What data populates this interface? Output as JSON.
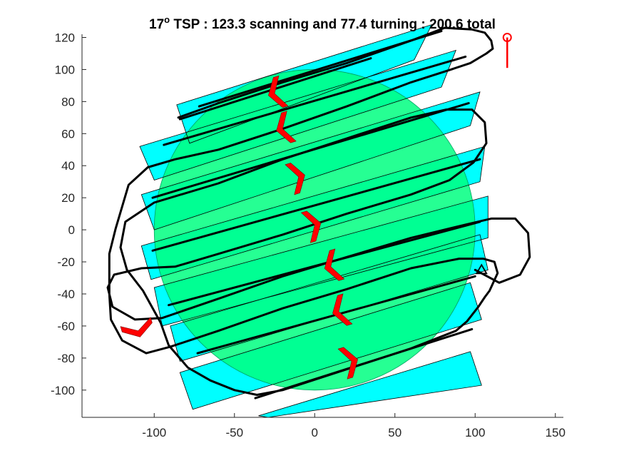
{
  "chart_data": {
    "type": "line",
    "title": {
      "prefix": "17",
      "superscript": "o",
      "suffix": " TSP : 123.3 scanning and 77.4 turning : 200.6 total"
    },
    "xlim": [
      -145,
      155
    ],
    "ylim": [
      -117,
      122
    ],
    "x_ticks": [
      -100,
      -50,
      0,
      50,
      100,
      150
    ],
    "y_ticks": [
      -100,
      -80,
      -60,
      -40,
      -20,
      0,
      20,
      40,
      60,
      80,
      100,
      120
    ],
    "grid": false,
    "colors": {
      "circle_fill": "#00ff80",
      "strip_fill": "#00ffff",
      "path": "#000000",
      "arrow": "#ff0000",
      "start_marker": "#ff0000",
      "end_marker": "#000000"
    },
    "circle": {
      "center": [
        0,
        0
      ],
      "radius": 100
    },
    "strips": [
      {
        "corners": [
          [
            -35,
            -116
          ],
          [
            97,
            -76
          ],
          [
            104,
            -97
          ],
          [
            -29,
            -117
          ]
        ]
      },
      {
        "corners": [
          [
            -84,
            -89
          ],
          [
            97,
            -33
          ],
          [
            104,
            -56
          ],
          [
            -76,
            -112
          ]
        ]
      },
      {
        "corners": [
          [
            -90,
            -60
          ],
          [
            103,
            -3
          ],
          [
            108,
            -25
          ],
          [
            -84,
            -82
          ]
        ]
      },
      {
        "corners": [
          [
            -100,
            -36
          ],
          [
            108,
            21
          ],
          [
            108,
            -5
          ],
          [
            -95,
            -60
          ]
        ]
      },
      {
        "corners": [
          [
            -108,
            -10
          ],
          [
            106,
            52
          ],
          [
            103,
            30
          ],
          [
            -102,
            -31
          ]
        ]
      },
      {
        "corners": [
          [
            -108,
            22
          ],
          [
            103,
            86
          ],
          [
            97,
            65
          ],
          [
            -100,
            0
          ]
        ]
      },
      {
        "corners": [
          [
            -109,
            52
          ],
          [
            88,
            112
          ],
          [
            79,
            89
          ],
          [
            -100,
            31
          ]
        ]
      },
      {
        "corners": [
          [
            -86,
            78
          ],
          [
            73,
            128
          ],
          [
            62,
            106
          ],
          [
            -78,
            54
          ]
        ]
      }
    ],
    "scan_lines": [
      [
        [
          -37,
          -105
        ],
        [
          98,
          -62
        ]
      ],
      [
        [
          -73,
          -77
        ],
        [
          100,
          -29
        ]
      ],
      [
        [
          -91,
          -47
        ],
        [
          103,
          5
        ]
      ],
      [
        [
          -101,
          -13
        ],
        [
          103,
          44
        ]
      ],
      [
        [
          -101,
          20
        ],
        [
          96,
          79
        ]
      ],
      [
        [
          -94,
          53
        ],
        [
          94,
          108
        ]
      ],
      [
        [
          -72,
          77
        ],
        [
          79,
          124
        ]
      ],
      [
        [
          -84,
          69
        ],
        [
          35,
          107
        ]
      ]
    ],
    "path": [
      [
        100,
        -25
      ],
      [
        115,
        -33
      ],
      [
        128,
        -28
      ],
      [
        134,
        -17
      ],
      [
        133,
        -2
      ],
      [
        125,
        7
      ],
      [
        110,
        7
      ],
      [
        93,
        3
      ],
      [
        60,
        -5
      ],
      [
        20,
        -17
      ],
      [
        -20,
        -29
      ],
      [
        -60,
        -43
      ],
      [
        -95,
        -55
      ],
      [
        -112,
        -56
      ],
      [
        -126,
        -48
      ],
      [
        -129,
        -36
      ],
      [
        -125,
        -28
      ],
      [
        -108,
        -24
      ],
      [
        -87,
        -23
      ],
      [
        -60,
        -15
      ],
      [
        -20,
        -3
      ],
      [
        20,
        10
      ],
      [
        60,
        22
      ],
      [
        84,
        31
      ],
      [
        99,
        42
      ],
      [
        107,
        54
      ],
      [
        106,
        67
      ],
      [
        98,
        75
      ],
      [
        82,
        75
      ],
      [
        60,
        70
      ],
      [
        20,
        57
      ],
      [
        -20,
        44
      ],
      [
        -60,
        29
      ],
      [
        -100,
        17
      ],
      [
        -118,
        5
      ],
      [
        -121,
        -11
      ],
      [
        -117,
        -25
      ],
      [
        -107,
        -38
      ],
      [
        -96,
        -58
      ],
      [
        -91,
        -72
      ],
      [
        -79,
        -86
      ],
      [
        -65,
        -94
      ],
      [
        -50,
        -100
      ],
      [
        -36,
        -103
      ],
      [
        -20,
        -100
      ],
      [
        20,
        -87
      ],
      [
        60,
        -74
      ],
      [
        88,
        -63
      ],
      [
        95,
        -57
      ],
      [
        102,
        -48
      ],
      [
        106,
        -42
      ],
      [
        109,
        -38
      ],
      [
        114,
        -27
      ],
      [
        112,
        -20
      ],
      [
        105,
        -18
      ],
      [
        90,
        -18
      ],
      [
        60,
        -24
      ],
      [
        20,
        -37
      ],
      [
        -20,
        -49
      ],
      [
        -60,
        -63
      ],
      [
        -90,
        -73
      ],
      [
        -105,
        -77
      ],
      [
        -120,
        -69
      ],
      [
        -127,
        -56
      ],
      [
        -128,
        -40
      ],
      [
        -128,
        -15
      ],
      [
        -124,
        1
      ],
      [
        -116,
        28
      ],
      [
        -104,
        39
      ],
      [
        -87,
        44
      ],
      [
        -60,
        50
      ],
      [
        -20,
        63
      ],
      [
        20,
        77
      ],
      [
        60,
        92
      ],
      [
        85,
        100
      ],
      [
        97,
        104
      ],
      [
        107,
        110
      ],
      [
        111,
        113
      ],
      [
        110,
        118
      ],
      [
        106,
        123
      ],
      [
        98,
        125
      ],
      [
        81,
        126
      ],
      [
        60,
        118
      ],
      [
        20,
        104
      ],
      [
        -20,
        92
      ],
      [
        -60,
        79
      ],
      [
        -85,
        70
      ]
    ],
    "arrows": [
      {
        "x": -25,
        "y": 85,
        "orientation": "left"
      },
      {
        "x": -20,
        "y": 63,
        "orientation": "left"
      },
      {
        "x": -10,
        "y": 33,
        "orientation": "right"
      },
      {
        "x": 0,
        "y": 3,
        "orientation": "right"
      },
      {
        "x": 10,
        "y": -23,
        "orientation": "left"
      },
      {
        "x": 15,
        "y": -51,
        "orientation": "left"
      },
      {
        "x": 23,
        "y": -82,
        "orientation": "right"
      },
      {
        "x": -110,
        "y": -63,
        "orientation": "down"
      }
    ],
    "start_marker": {
      "x": 120,
      "y": 120,
      "tail_to": [
        120,
        101
      ]
    },
    "end_marker": {
      "x": 104,
      "y": -25
    }
  }
}
